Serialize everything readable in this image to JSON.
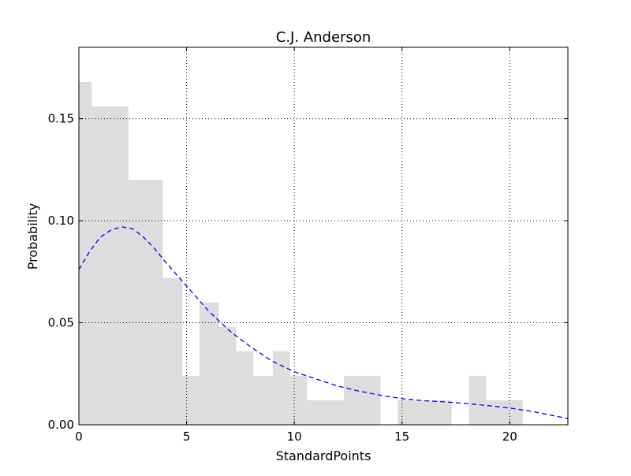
{
  "chart_data": {
    "type": "bar",
    "title": "C.J. Anderson",
    "xlabel": "StandardPoints",
    "ylabel": "Probability",
    "xlim": [
      0,
      22.7
    ],
    "ylim": [
      0,
      0.185
    ],
    "xticks": [
      0,
      5,
      10,
      15,
      20
    ],
    "xtick_labels": [
      "0",
      "5",
      "10",
      "15",
      "20"
    ],
    "yticks": [
      0,
      0.05,
      0.1,
      0.15
    ],
    "ytick_labels": [
      "0.00",
      "0.05",
      "0.10",
      "0.15"
    ],
    "grid": true,
    "histogram": [
      {
        "x0": 0.0,
        "x1": 0.6,
        "value": 0.168
      },
      {
        "x0": 0.6,
        "x1": 2.3,
        "value": 0.156
      },
      {
        "x0": 2.3,
        "x1": 3.9,
        "value": 0.12
      },
      {
        "x0": 3.9,
        "x1": 4.8,
        "value": 0.072
      },
      {
        "x0": 4.8,
        "x1": 5.6,
        "value": 0.024
      },
      {
        "x0": 5.6,
        "x1": 6.5,
        "value": 0.06
      },
      {
        "x0": 6.5,
        "x1": 7.3,
        "value": 0.048
      },
      {
        "x0": 7.3,
        "x1": 8.1,
        "value": 0.036
      },
      {
        "x0": 8.1,
        "x1": 9.0,
        "value": 0.024
      },
      {
        "x0": 9.0,
        "x1": 9.8,
        "value": 0.036
      },
      {
        "x0": 9.8,
        "x1": 10.6,
        "value": 0.024
      },
      {
        "x0": 10.6,
        "x1": 12.3,
        "value": 0.012
      },
      {
        "x0": 12.3,
        "x1": 14.0,
        "value": 0.024
      },
      {
        "x0": 14.8,
        "x1": 17.3,
        "value": 0.012
      },
      {
        "x0": 18.1,
        "x1": 18.9,
        "value": 0.024
      },
      {
        "x0": 18.9,
        "x1": 20.6,
        "value": 0.012
      }
    ],
    "kde_curve": {
      "style": "dashed",
      "color": "#0000ff",
      "x": [
        0,
        0.5,
        1,
        1.5,
        2,
        2.5,
        3,
        3.5,
        4,
        4.5,
        5,
        5.5,
        6,
        6.5,
        7,
        7.5,
        8,
        8.5,
        9,
        9.5,
        10,
        11,
        12,
        13,
        14,
        15,
        16,
        17,
        18,
        19,
        20,
        21,
        22,
        22.7
      ],
      "y": [
        0.076,
        0.085,
        0.092,
        0.0955,
        0.097,
        0.096,
        0.092,
        0.0865,
        0.08,
        0.074,
        0.068,
        0.062,
        0.056,
        0.051,
        0.046,
        0.042,
        0.038,
        0.0345,
        0.031,
        0.0285,
        0.026,
        0.0225,
        0.019,
        0.0165,
        0.0145,
        0.0128,
        0.0118,
        0.0112,
        0.0104,
        0.0094,
        0.0082,
        0.0066,
        0.0045,
        0.003
      ]
    }
  }
}
